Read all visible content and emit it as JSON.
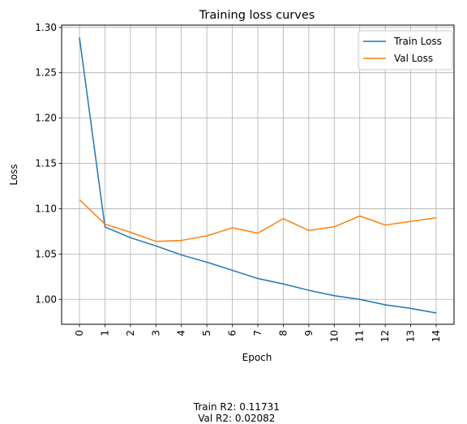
{
  "chart_data": {
    "type": "line",
    "title": "Training loss curves",
    "xlabel": "Epoch",
    "ylabel": "Loss",
    "x": [
      0,
      1,
      2,
      3,
      4,
      5,
      6,
      7,
      8,
      9,
      10,
      11,
      12,
      13,
      14
    ],
    "xlim": [
      -0.7,
      14.7
    ],
    "ylim": [
      0.9725,
      1.3025
    ],
    "yticks": [
      1.0,
      1.05,
      1.1,
      1.15,
      1.2,
      1.25,
      1.3
    ],
    "ytick_labels": [
      "1.00",
      "1.05",
      "1.10",
      "1.15",
      "1.20",
      "1.25",
      "1.30"
    ],
    "xtick_rotation": "vertical",
    "grid": true,
    "legend_position": "top-right",
    "series": [
      {
        "name": "Train Loss",
        "color": "#1f77b4",
        "values": [
          1.289,
          1.08,
          1.068,
          1.059,
          1.049,
          1.041,
          1.032,
          1.023,
          1.017,
          1.01,
          1.004,
          1.0,
          0.994,
          0.99,
          0.985
        ]
      },
      {
        "name": "Val Loss",
        "color": "#ff7f0e",
        "values": [
          1.11,
          1.083,
          1.074,
          1.064,
          1.065,
          1.07,
          1.079,
          1.073,
          1.089,
          1.076,
          1.08,
          1.092,
          1.082,
          1.086,
          1.09
        ]
      }
    ]
  },
  "footer": {
    "train_r2": "Train R2: 0.11731",
    "val_r2": "Val R2: 0.02082"
  }
}
